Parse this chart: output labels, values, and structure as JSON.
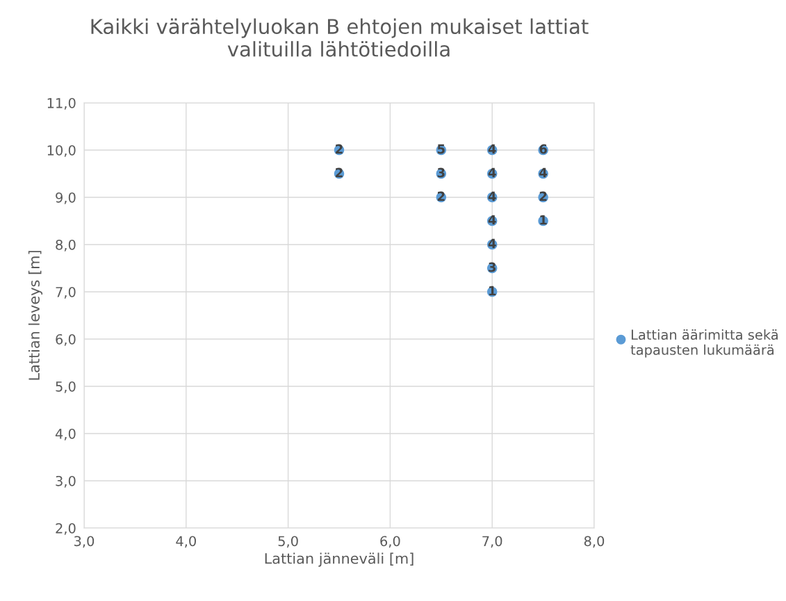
{
  "chart_data": {
    "type": "scatter",
    "title": "Kaikki värähtelyluokan B ehtojen mukaiset lattiat\nvalituilla lähtötiedoilla",
    "xlabel": "Lattian jänneväli [m]",
    "ylabel": "Lattian leveys [m]",
    "series": [
      {
        "name": "Lattian äärimitta sekä tapausten lukumäärä",
        "color": "#5b9bd5",
        "x": [
          5.5,
          5.5,
          6.5,
          6.5,
          6.5,
          7.0,
          7.0,
          7.0,
          7.0,
          7.0,
          7.0,
          7.0,
          7.5,
          7.5,
          7.5,
          7.5
        ],
        "values": [
          10.0,
          9.5,
          10.0,
          9.5,
          9.0,
          10.0,
          9.5,
          9.0,
          8.5,
          8.0,
          7.5,
          7.0,
          10.0,
          9.5,
          9.0,
          8.5
        ]
      }
    ],
    "annotations": [
      {
        "text": "2",
        "x": 5.5,
        "y": 10.0
      },
      {
        "text": "2",
        "x": 5.5,
        "y": 9.5
      },
      {
        "text": "5",
        "x": 6.5,
        "y": 10.0
      },
      {
        "text": "3",
        "x": 6.5,
        "y": 9.5
      },
      {
        "text": "2",
        "x": 6.5,
        "y": 9.0
      },
      {
        "text": "4",
        "x": 7.0,
        "y": 10.0
      },
      {
        "text": "4",
        "x": 7.0,
        "y": 9.5
      },
      {
        "text": "4",
        "x": 7.0,
        "y": 9.0
      },
      {
        "text": "4",
        "x": 7.0,
        "y": 8.5
      },
      {
        "text": "4",
        "x": 7.0,
        "y": 8.0
      },
      {
        "text": "3",
        "x": 7.0,
        "y": 7.5
      },
      {
        "text": "1",
        "x": 7.0,
        "y": 7.0
      },
      {
        "text": "6",
        "x": 7.5,
        "y": 10.0
      },
      {
        "text": "4",
        "x": 7.5,
        "y": 9.5
      },
      {
        "text": "2",
        "x": 7.5,
        "y": 9.0
      },
      {
        "text": "1",
        "x": 7.5,
        "y": 8.5
      }
    ],
    "xlim": [
      3,
      8
    ],
    "xticks": [
      {
        "value": 3,
        "label": "3,0"
      },
      {
        "value": 4,
        "label": "4,0"
      },
      {
        "value": 5,
        "label": "5,0"
      },
      {
        "value": 6,
        "label": "6,0"
      },
      {
        "value": 7,
        "label": "7,0"
      },
      {
        "value": 8,
        "label": "8,0"
      }
    ],
    "ylim": [
      2,
      11
    ],
    "yticks": [
      {
        "value": 2,
        "label": "2,0"
      },
      {
        "value": 3,
        "label": "3,0"
      },
      {
        "value": 4,
        "label": "4,0"
      },
      {
        "value": 5,
        "label": "5,0"
      },
      {
        "value": 6,
        "label": "6,0"
      },
      {
        "value": 7,
        "label": "7,0"
      },
      {
        "value": 8,
        "label": "8,0"
      },
      {
        "value": 9,
        "label": "9,0"
      },
      {
        "value": 10,
        "label": "10,0"
      },
      {
        "value": 11,
        "label": "11,0"
      }
    ],
    "grid": true,
    "legend": "right",
    "marker": "circle"
  }
}
